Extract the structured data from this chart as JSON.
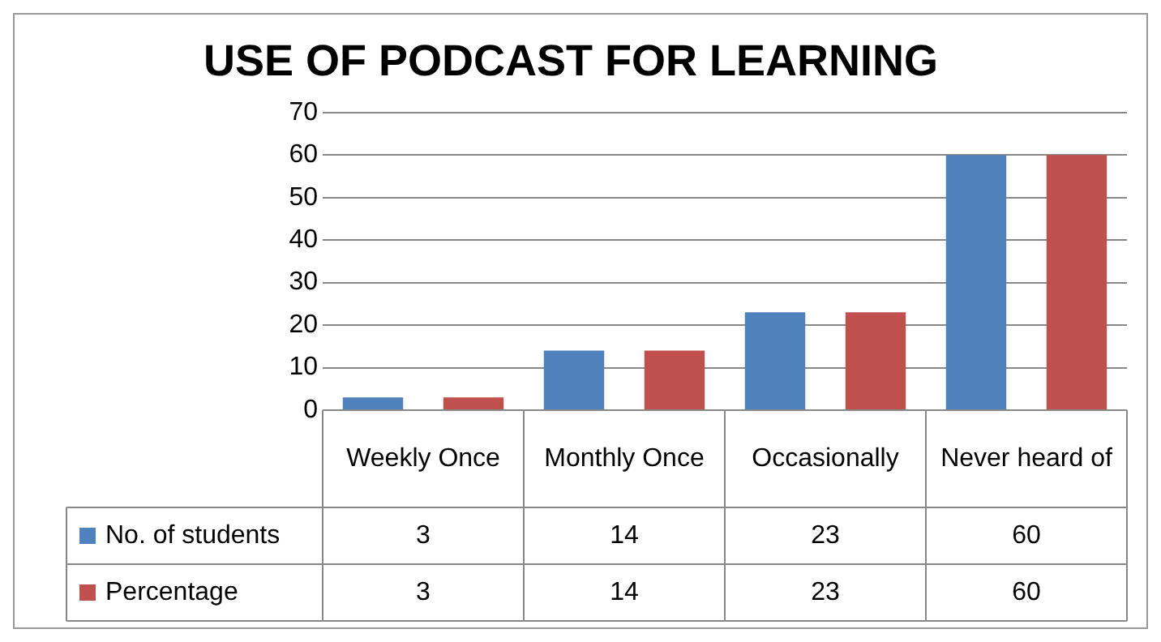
{
  "chart_data": {
    "type": "bar",
    "title": "USE OF PODCAST FOR LEARNING",
    "categories": [
      "Weekly Once",
      "Monthly Once",
      "Occasionally",
      "Never heard of"
    ],
    "series": [
      {
        "name": "No. of students",
        "color": "#4f81bd",
        "values": [
          3,
          14,
          23,
          60
        ]
      },
      {
        "name": "Percentage",
        "color": "#c0504d",
        "values": [
          3,
          14,
          23,
          60
        ]
      }
    ],
    "ylim": [
      0,
      70
    ],
    "yticks": [
      0,
      10,
      20,
      30,
      40,
      50,
      60,
      70
    ],
    "grid": "y",
    "legend": "bottom left",
    "data_labels": true
  }
}
